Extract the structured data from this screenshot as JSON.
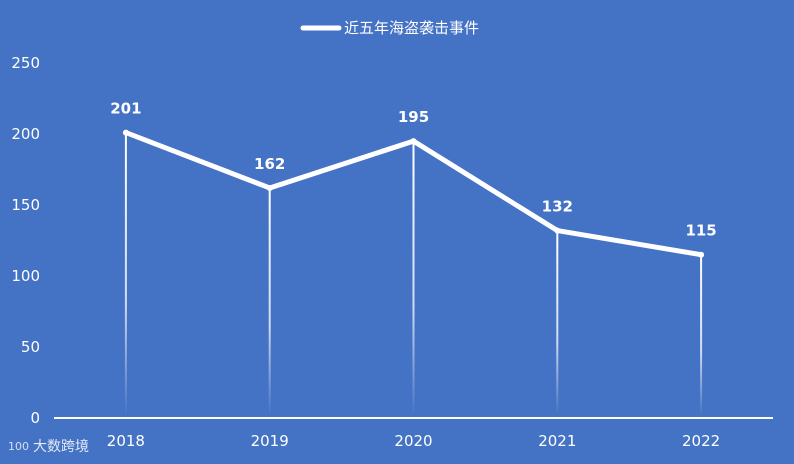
{
  "chart_data": {
    "type": "line",
    "title": "",
    "xlabel": "",
    "ylabel": "",
    "categories": [
      "2018",
      "2019",
      "2020",
      "2021",
      "2022"
    ],
    "series": [
      {
        "name": "近五年海盗袭击事件",
        "values": [
          201,
          162,
          195,
          132,
          115
        ]
      }
    ],
    "ylim": [
      0,
      250
    ],
    "yticks": [
      0,
      50,
      100,
      150,
      200,
      250
    ],
    "legend_position": "top-center",
    "data_labels": true,
    "grid": false,
    "drop_lines": true
  },
  "colors": {
    "background": "#4472c4",
    "line": "#ffffff",
    "text": "#ffffff"
  },
  "watermark": {
    "logo": "100",
    "text": "大数跨境"
  }
}
